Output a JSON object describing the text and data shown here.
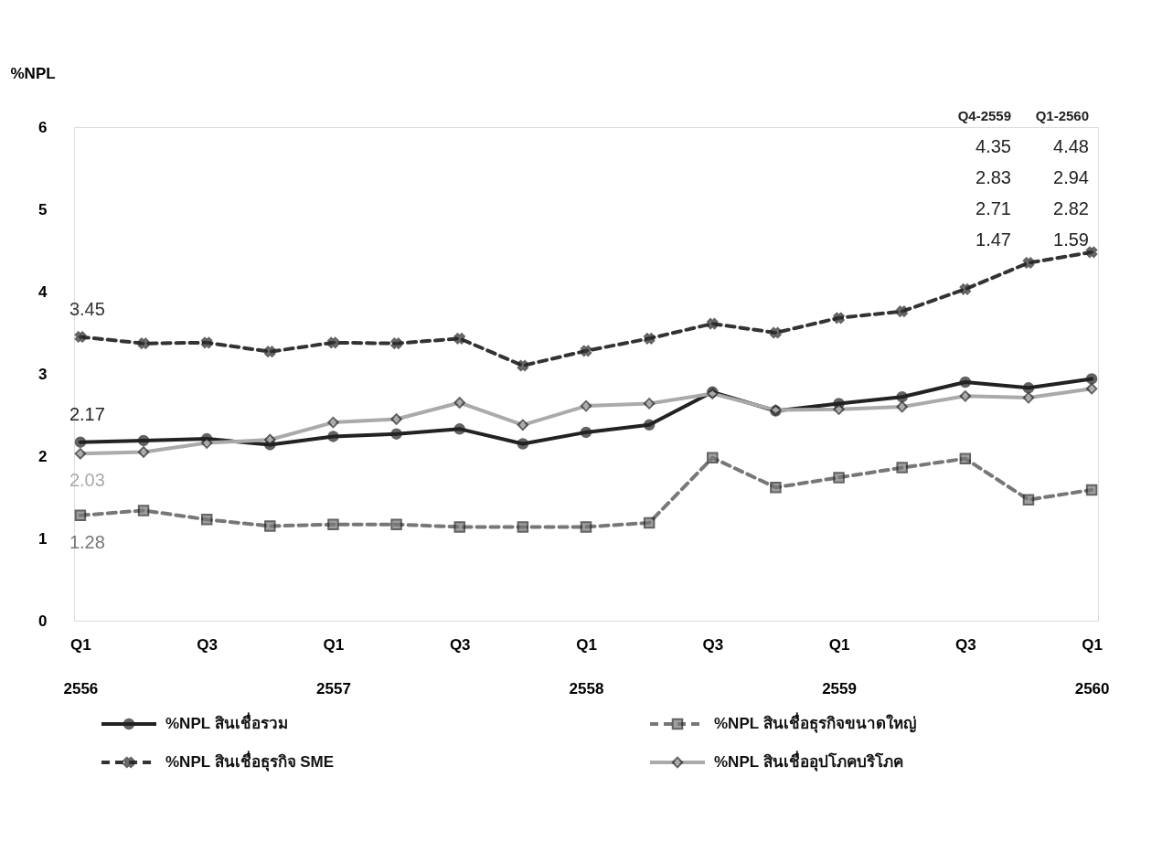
{
  "chart_data": {
    "type": "line",
    "ylabel": "%NPL",
    "ylim": [
      0,
      6
    ],
    "yticks": [
      0,
      1,
      2,
      3,
      4,
      5,
      6
    ],
    "grid": false,
    "legend": "bottom",
    "categories": [
      "Q1\n2556",
      null,
      "Q3",
      null,
      "Q1\n2557",
      null,
      "Q3",
      null,
      "Q1\n2558",
      null,
      "Q3",
      null,
      "Q1\n2559",
      null,
      "Q3",
      null,
      "Q1\n2560"
    ],
    "annotations": [
      "Q4-2559",
      "Q1-2560",
      "4.35",
      "4.48",
      "2.83",
      "2.94",
      "2.71",
      "2.82",
      "1.47",
      "1.59"
    ],
    "series": [
      {
        "name": "%NPL สินเชื่อรวม",
        "color": "#222222",
        "marker": "circle",
        "line_style": "solid",
        "values": [
          2.17,
          2.19,
          2.21,
          2.14,
          2.24,
          2.27,
          2.33,
          2.15,
          2.29,
          2.38,
          2.78,
          2.55,
          2.64,
          2.72,
          2.9,
          2.83,
          2.94
        ],
        "value_labels": [
          "2.17",
          null,
          null,
          null,
          null,
          null,
          null,
          null,
          null,
          null,
          null,
          null,
          null,
          null,
          null,
          null,
          null
        ]
      },
      {
        "name": "%NPL สินเชื่อธุรกิจขนาดใหญ่",
        "color": "#777777",
        "marker": "square",
        "line_style": "dashed",
        "values": [
          1.28,
          1.34,
          1.23,
          1.15,
          1.17,
          1.17,
          1.14,
          1.14,
          1.14,
          1.19,
          1.98,
          1.62,
          1.74,
          1.86,
          1.97,
          1.47,
          1.59
        ],
        "value_labels": [
          "1.28",
          null,
          null,
          null,
          null,
          null,
          null,
          null,
          null,
          null,
          null,
          null,
          null,
          null,
          null,
          null,
          null
        ]
      },
      {
        "name": "%NPL สินเชื่อธุรกิจ SME",
        "color": "#333333",
        "marker": "cross",
        "line_style": "dashed",
        "values": [
          3.45,
          3.37,
          3.38,
          3.27,
          3.38,
          3.37,
          3.43,
          3.1,
          3.28,
          3.43,
          3.61,
          3.5,
          3.68,
          3.76,
          4.03,
          4.35,
          4.48
        ],
        "value_labels": [
          "3.45",
          null,
          null,
          null,
          null,
          null,
          null,
          null,
          null,
          null,
          null,
          null,
          null,
          null,
          null,
          null,
          null
        ]
      },
      {
        "name": "%NPL สินเชื่ออุปโภคบริโภค",
        "color": "#aaaaaa",
        "marker": "diamond",
        "line_style": "solid",
        "values": [
          2.03,
          2.05,
          2.16,
          2.2,
          2.41,
          2.45,
          2.65,
          2.38,
          2.61,
          2.64,
          2.76,
          2.56,
          2.57,
          2.6,
          2.73,
          2.71,
          2.82
        ],
        "value_labels": [
          "2.03",
          null,
          null,
          null,
          null,
          null,
          null,
          null,
          null,
          null,
          null,
          null,
          null,
          null,
          null,
          null,
          null
        ]
      }
    ]
  }
}
